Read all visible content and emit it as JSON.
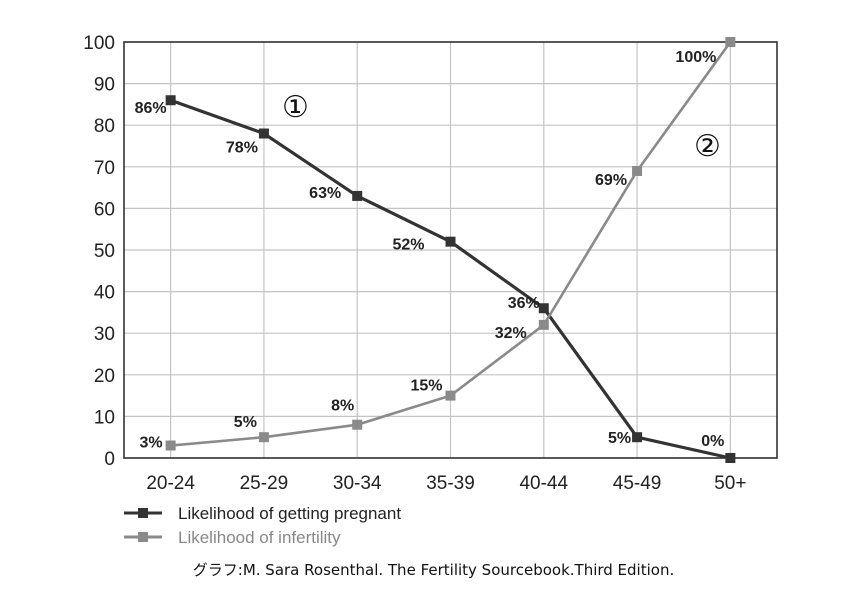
{
  "chart_data": {
    "type": "line",
    "categories": [
      "20-24",
      "25-29",
      "30-34",
      "35-39",
      "40-44",
      "45-49",
      "50+"
    ],
    "ylim": [
      0,
      100
    ],
    "yticks": [
      0,
      10,
      20,
      30,
      40,
      50,
      60,
      70,
      80,
      90,
      100
    ],
    "grid": true,
    "series": [
      {
        "name": "Likelihood of getting pregnant",
        "color": "#333333",
        "values": [
          86,
          78,
          63,
          52,
          36,
          5,
          0
        ],
        "labels": [
          "86%",
          "78%",
          "63%",
          "52%",
          "36%",
          "5%",
          "0%"
        ]
      },
      {
        "name": "Likelihood of infertility",
        "color": "#8a8a8a",
        "values": [
          3,
          5,
          8,
          15,
          32,
          69,
          100
        ],
        "labels": [
          "3%",
          "5%",
          "8%",
          "15%",
          "32%",
          "69%",
          "100%"
        ]
      }
    ],
    "annotations": [
      "①",
      "②"
    ],
    "legend_position": "bottom-left"
  },
  "caption": "グラフ:M. Sara Rosenthal.  The Fertility Sourcebook.Third Edition."
}
